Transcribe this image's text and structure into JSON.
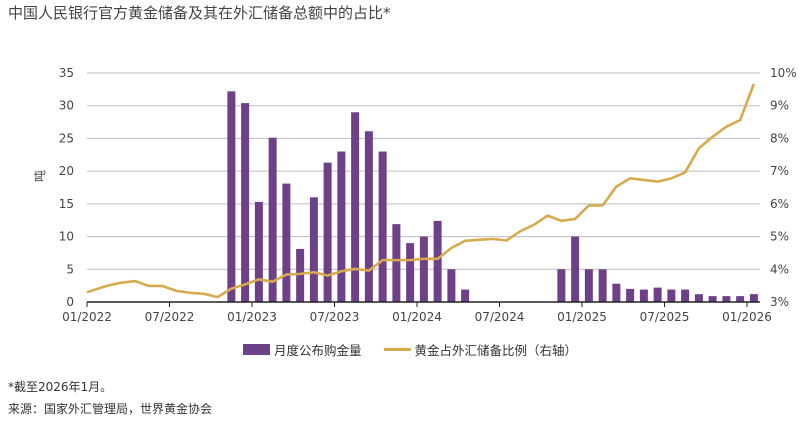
{
  "title": "中国人民银行官方黄金储备及其在外汇储备总额中的占比*",
  "legend": {
    "bars": "月度公布购金量",
    "line": "黄金占外汇储备比例（右轴）"
  },
  "footnote": "*截至2026年1月。",
  "source": "来源：国家外汇管理局，世界黄金协会",
  "colors": {
    "bars": "#6e4088",
    "line": "#d7aa4e",
    "grid": "#bdbdbd"
  },
  "chart_data": {
    "type": "bar+line",
    "title": "中国人民银行官方黄金储备及其在外汇储备总额中的占比*",
    "ylabel": "吨",
    "ylabel_right": "",
    "ylim": [
      0,
      35
    ],
    "ylim_right": [
      3,
      10
    ],
    "yticks": [
      "0",
      "5",
      "10",
      "15",
      "20",
      "25",
      "30",
      "35"
    ],
    "yticks_right": [
      "3%",
      "4%",
      "5%",
      "6%",
      "7%",
      "8%",
      "9%",
      "10%"
    ],
    "xticks": [
      "01/2022",
      "07/2022",
      "01/2023",
      "07/2023",
      "01/2024",
      "07/2024",
      "01/2025",
      "07/2025",
      "01/2026"
    ],
    "xtick_month_index": [
      0,
      6,
      12,
      18,
      24,
      30,
      36,
      42,
      48
    ],
    "months": [
      "2022-01",
      "2022-02",
      "2022-03",
      "2022-04",
      "2022-05",
      "2022-06",
      "2022-07",
      "2022-08",
      "2022-09",
      "2022-10",
      "2022-11",
      "2022-12",
      "2023-01",
      "2023-02",
      "2023-03",
      "2023-04",
      "2023-05",
      "2023-06",
      "2023-07",
      "2023-08",
      "2023-09",
      "2023-10",
      "2023-11",
      "2023-12",
      "2024-01",
      "2024-02",
      "2024-03",
      "2024-04",
      "2024-05",
      "2024-06",
      "2024-07",
      "2024-08",
      "2024-09",
      "2024-10",
      "2024-11",
      "2024-12",
      "2025-01",
      "2025-02",
      "2025-03",
      "2025-04",
      "2025-05",
      "2025-06",
      "2025-07",
      "2025-08",
      "2025-09",
      "2025-10",
      "2025-11",
      "2025-12",
      "2026-01"
    ],
    "series": [
      {
        "name": "月度公布购金量",
        "type": "bar",
        "axis": "left",
        "values": [
          0,
          0,
          0,
          0,
          0,
          0,
          0,
          0,
          0,
          0,
          32.2,
          30.4,
          15.3,
          25.1,
          18.1,
          8.1,
          16.0,
          21.3,
          23.0,
          29.0,
          26.1,
          23.0,
          11.9,
          9.0,
          10.0,
          12.4,
          5.0,
          1.9,
          0,
          0,
          0,
          0,
          0,
          0,
          5.0,
          10.0,
          5.0,
          5.0,
          2.8,
          2.0,
          1.9,
          2.2,
          1.9,
          1.9,
          1.2,
          0.9,
          0.9,
          0.9,
          1.2
        ]
      },
      {
        "name": "黄金占外汇储备比例（右轴）",
        "type": "line",
        "axis": "right",
        "values": [
          3.3,
          3.5,
          3.59,
          3.64,
          3.49,
          3.49,
          3.34,
          3.28,
          3.25,
          3.15,
          3.41,
          3.54,
          3.69,
          3.62,
          3.84,
          3.86,
          3.91,
          3.81,
          3.94,
          4.01,
          3.96,
          4.28,
          4.28,
          4.28,
          4.32,
          4.32,
          4.65,
          4.87,
          4.9,
          4.93,
          4.88,
          5.16,
          5.36,
          5.64,
          5.48,
          5.54,
          5.95,
          5.95,
          6.53,
          6.78,
          6.73,
          6.68,
          6.78,
          6.96,
          7.7,
          8.05,
          8.36,
          8.56,
          9.67
        ]
      }
    ],
    "legend_position": "bottom-center",
    "grid": true
  }
}
